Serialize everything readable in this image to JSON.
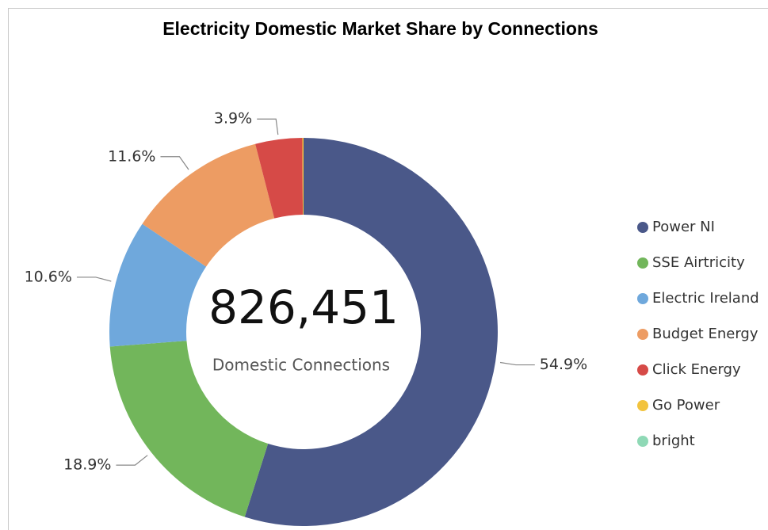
{
  "chart_data": {
    "type": "donut",
    "title": "Electricity Domestic Market Share by Connections",
    "center_text": "826,451",
    "center_label": "Domestic Connections",
    "categories": [
      "Power NI",
      "SSE Airtricity",
      "Electric Ireland",
      "Budget Energy",
      "Click Energy",
      "Go Power",
      "bright"
    ],
    "values": [
      54.9,
      18.9,
      10.6,
      11.6,
      3.9,
      0.1,
      0
    ],
    "value_labels": [
      "54.9%",
      "18.9%",
      "10.6%",
      "11.6%",
      "3.9%",
      null,
      null
    ],
    "colors": [
      "#4a5889",
      "#72b65b",
      "#6fa8dc",
      "#ed9c63",
      "#d64a47",
      "#f2c33e",
      "#8fd9b6"
    ],
    "legend": "right"
  }
}
